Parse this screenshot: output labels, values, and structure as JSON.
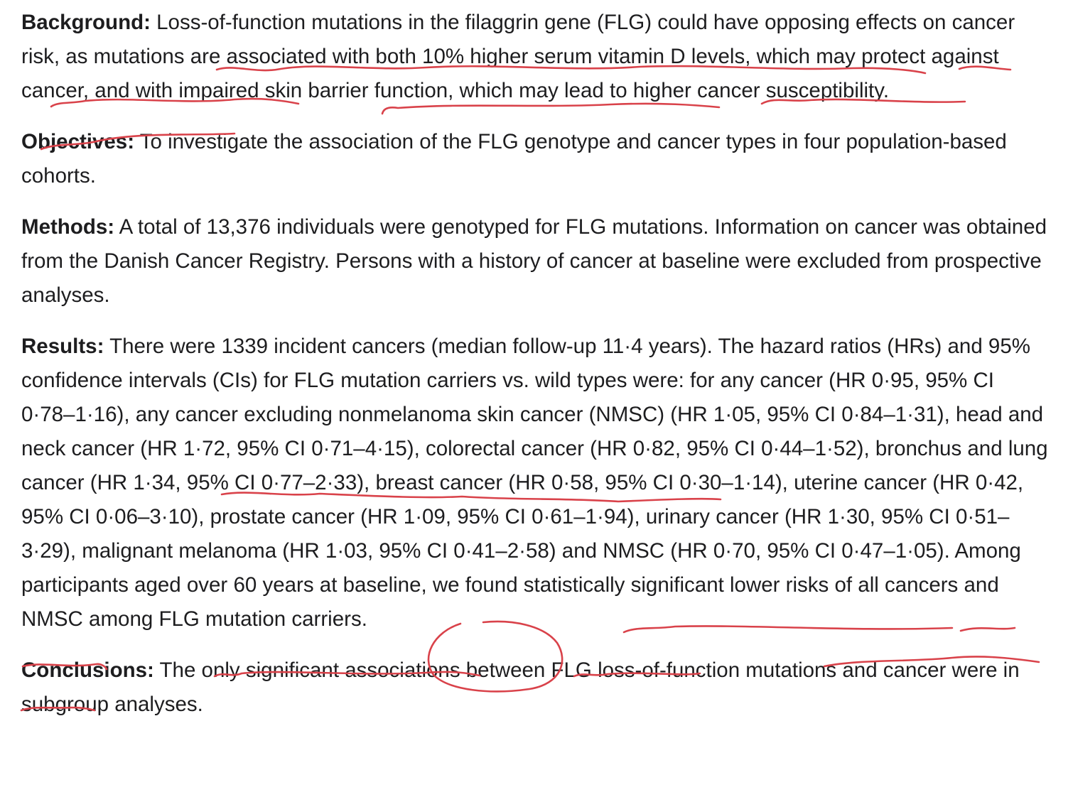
{
  "sections": [
    {
      "label": "Background:",
      "text": "Loss-of-function mutations in the filaggrin gene (FLG) could have opposing effects on cancer risk, as mutations are associated with both 10% higher serum vitamin D levels, which may protect against cancer, and with impaired skin barrier function, which may lead to higher cancer susceptibility."
    },
    {
      "label": "Objectives:",
      "text": "To investigate the association of the FLG genotype and cancer types in four population-based cohorts."
    },
    {
      "label": "Methods:",
      "text": "A total of 13,376 individuals were genotyped for FLG mutations. Information on cancer was obtained from the Danish Cancer Registry. Persons with a history of cancer at baseline were excluded from prospective analyses."
    },
    {
      "label": "Results:",
      "text": "There were 1339 incident cancers (median follow-up 11·4 years). The hazard ratios (HRs) and 95% confidence intervals (CIs) for FLG mutation carriers vs. wild types were: for any cancer (HR 0·95, 95% CI 0·78–1·16), any cancer excluding nonmelanoma skin cancer (NMSC) (HR 1·05, 95% CI 0·84–1·31), head and neck cancer (HR 1·72, 95% CI 0·71–4·15), colorectal cancer (HR 0·82, 95% CI 0·44–1·52), bronchus and lung cancer (HR 1·34, 95% CI 0·77–2·33), breast cancer (HR 0·58, 95% CI 0·30–1·14), uterine cancer (HR 0·42, 95% CI 0·06–3·10), prostate cancer (HR 1·09, 95% CI 0·61–1·94), urinary cancer (HR 1·30, 95% CI 0·51–3·29), malignant melanoma (HR 1·03, 95% CI 0·41–2·58) and NMSC (HR 0·70, 95% CI 0·47–1·05). Among participants aged over 60 years at baseline, we found statistically significant lower risks of all cancers and NMSC among FLG mutation carriers."
    },
    {
      "label": "Conclusions:",
      "text": "The only significant associations between FLG loss-of-function mutations and cancer were in subgroup analyses."
    }
  ],
  "annotation_color": "#d9424a"
}
